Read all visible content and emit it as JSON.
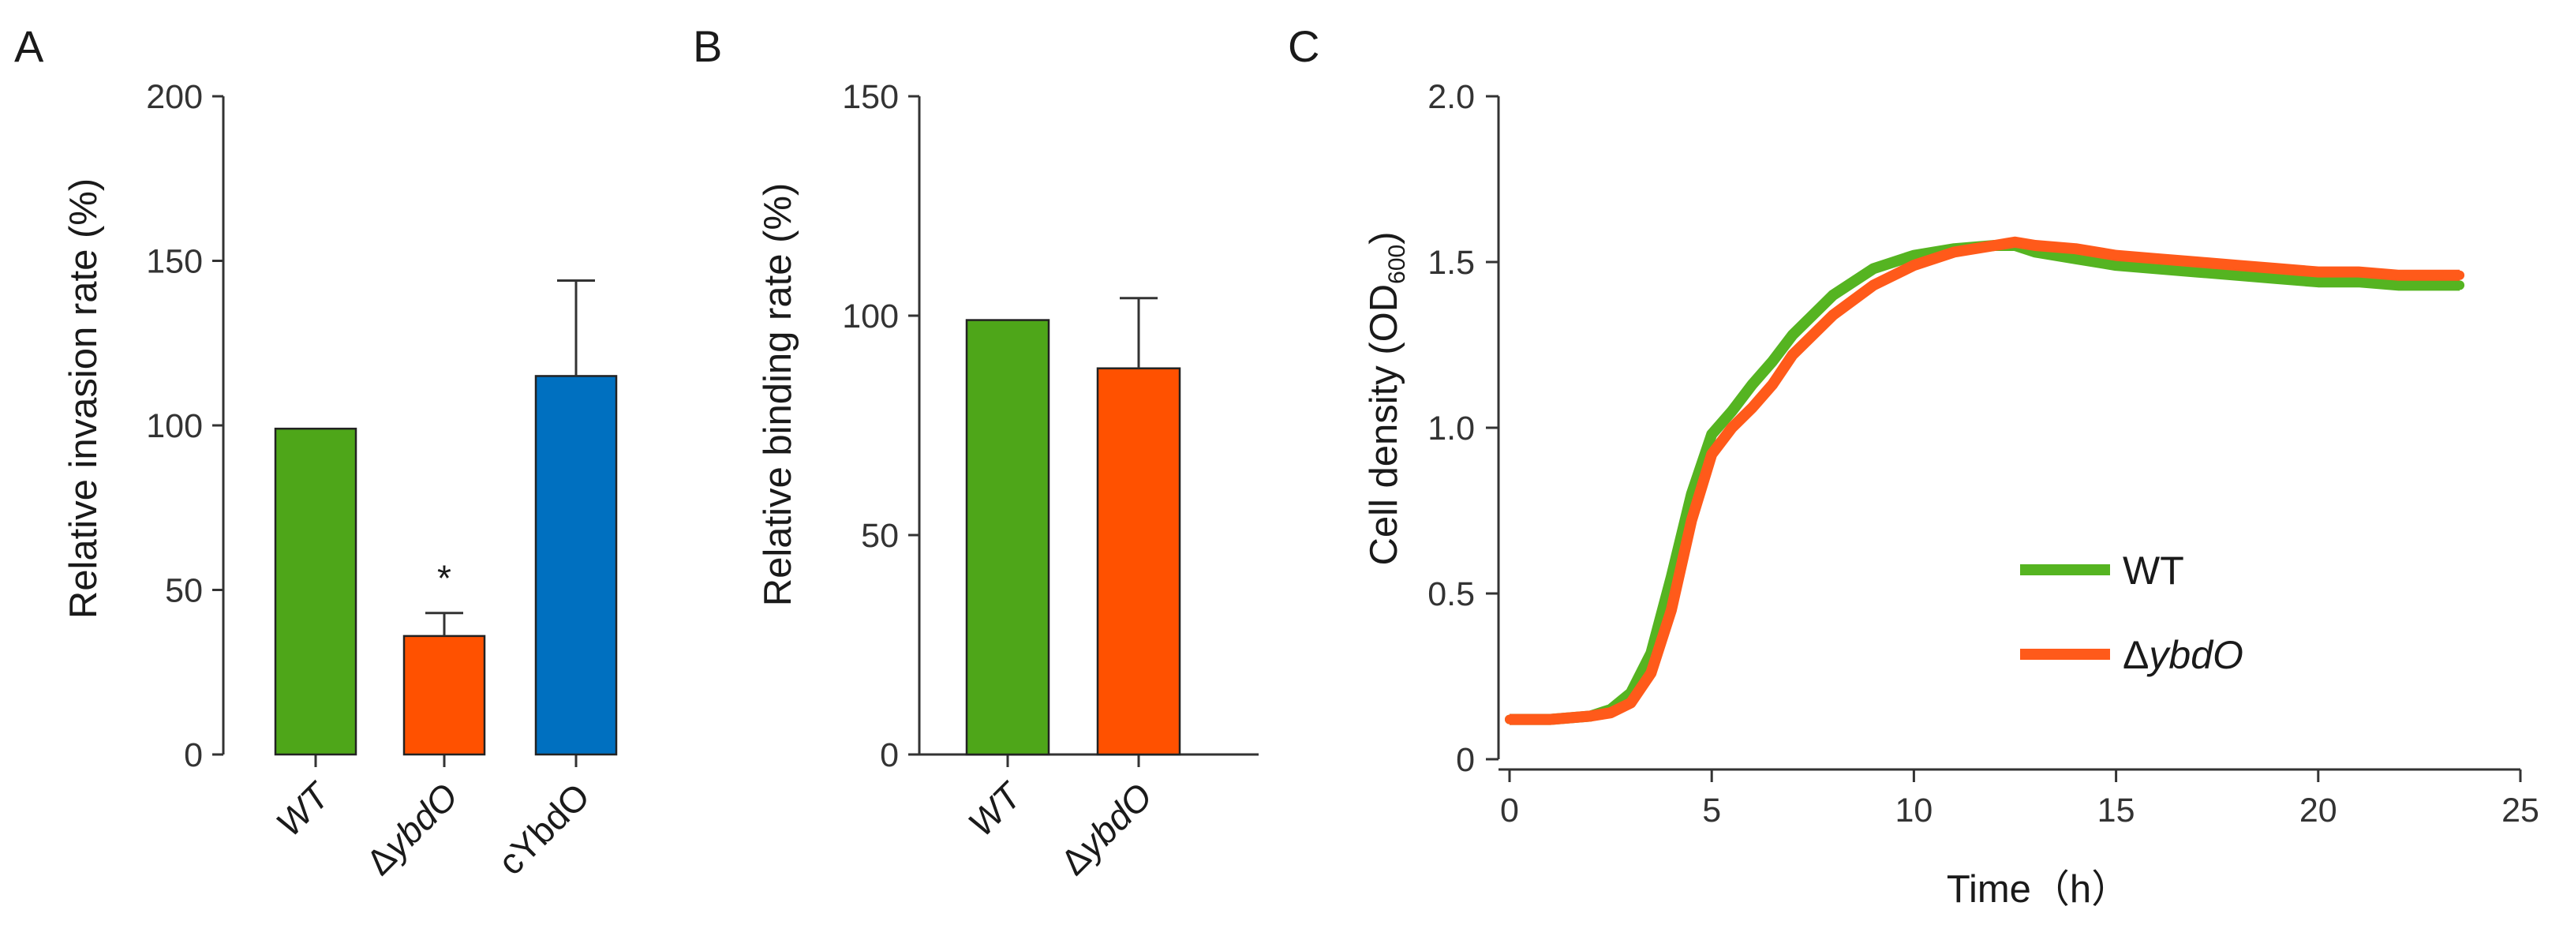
{
  "chart_data": [
    {
      "panel": "A",
      "type": "bar",
      "ylabel": "Relative invasion rate (%)",
      "ylim": [
        0,
        200
      ],
      "yticks": [
        0,
        50,
        100,
        150,
        200
      ],
      "categories": [
        {
          "label": "WT",
          "prefix": "",
          "italic": "",
          "suffix": "WT"
        },
        {
          "label": "ΔybdO",
          "prefix": "Δ",
          "italic": "ybd",
          "suffix": "O"
        },
        {
          "label": "cYbdO",
          "prefix": "",
          "italic": "",
          "suffix": "cYbdO"
        }
      ],
      "values": [
        99,
        36,
        115
      ],
      "errors": [
        0,
        7,
        29
      ],
      "colors": [
        "#4ea619",
        "#ff5100",
        "#0070c0"
      ],
      "annotations": [
        "",
        "*",
        ""
      ]
    },
    {
      "panel": "B",
      "type": "bar",
      "ylabel": "Relative binding rate (%)",
      "ylim": [
        0,
        150
      ],
      "yticks": [
        0,
        50,
        100,
        150
      ],
      "categories": [
        {
          "label": "WT",
          "prefix": "",
          "italic": "",
          "suffix": "WT"
        },
        {
          "label": "ΔybdO",
          "prefix": "Δ",
          "italic": "ybd",
          "suffix": "O"
        }
      ],
      "values": [
        99,
        88
      ],
      "errors": [
        0,
        16
      ],
      "colors": [
        "#4ea619",
        "#ff5100"
      ]
    },
    {
      "panel": "C",
      "type": "line",
      "xlabel": "Time（h）",
      "ylabel_main": "Cell density (OD",
      "ylabel_sub": "600",
      "ylabel_end": ")",
      "xlim": [
        0,
        25
      ],
      "ylim": [
        0,
        2.0
      ],
      "xticks": [
        0,
        5,
        10,
        15,
        20,
        25
      ],
      "yticks": [
        "0",
        "0.5",
        "1.0",
        "1.5",
        "2.0"
      ],
      "ytick_values": [
        0,
        0.5,
        1.0,
        1.5,
        2.0
      ],
      "series": [
        {
          "name": "WT",
          "legend_prefix": "",
          "legend_italic": "",
          "legend_suffix": "WT",
          "color": "#55b421",
          "x": [
            0,
            1,
            2,
            2.5,
            3,
            3.5,
            4,
            4.5,
            5,
            5.5,
            6,
            6.5,
            7,
            8,
            9,
            10,
            11,
            12,
            12.5,
            13,
            14,
            15,
            16,
            17,
            18,
            19,
            20,
            21,
            22,
            23,
            23.5
          ],
          "y": [
            0.12,
            0.12,
            0.13,
            0.15,
            0.2,
            0.32,
            0.55,
            0.8,
            0.98,
            1.05,
            1.13,
            1.2,
            1.28,
            1.4,
            1.48,
            1.52,
            1.54,
            1.55,
            1.55,
            1.53,
            1.51,
            1.49,
            1.48,
            1.47,
            1.46,
            1.45,
            1.44,
            1.44,
            1.43,
            1.43,
            1.43
          ]
        },
        {
          "name": "ΔybdO",
          "legend_prefix": "Δ",
          "legend_italic": "ybdO",
          "legend_suffix": "",
          "color": "#ff5a1a",
          "x": [
            0,
            1,
            2,
            2.5,
            3,
            3.5,
            4,
            4.5,
            5,
            5.5,
            6,
            6.5,
            7,
            8,
            9,
            10,
            11,
            12,
            12.5,
            13,
            14,
            15,
            16,
            17,
            18,
            19,
            20,
            21,
            22,
            23,
            23.5
          ],
          "y": [
            0.12,
            0.12,
            0.13,
            0.14,
            0.17,
            0.26,
            0.45,
            0.72,
            0.92,
            1.0,
            1.06,
            1.13,
            1.22,
            1.34,
            1.43,
            1.49,
            1.53,
            1.55,
            1.56,
            1.55,
            1.54,
            1.52,
            1.51,
            1.5,
            1.49,
            1.48,
            1.47,
            1.47,
            1.46,
            1.46,
            1.46
          ]
        }
      ],
      "legend_position": "center-right"
    }
  ],
  "panel_labels": [
    "A",
    "B",
    "C"
  ],
  "significance_marker": "*"
}
